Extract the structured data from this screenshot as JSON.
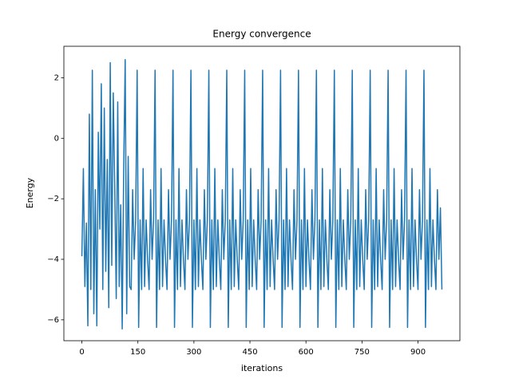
{
  "chart_data": {
    "type": "line",
    "title": "Energy convergence",
    "xlabel": "iterations",
    "ylabel": "Energy",
    "xlim": [
      -48.2,
      1012.2
    ],
    "ylim": [
      -6.69,
      3.04
    ],
    "xticks": [
      0,
      150,
      300,
      450,
      600,
      750,
      900
    ],
    "yticks": [
      {
        "value": -6,
        "label": "−6"
      },
      {
        "value": -4,
        "label": "−4"
      },
      {
        "value": -2,
        "label": "−2"
      },
      0,
      2
    ],
    "x": [
      0,
      4,
      8,
      12,
      16,
      20,
      24,
      28,
      32,
      36,
      40,
      44,
      48,
      52,
      56,
      60,
      64,
      68,
      72,
      76,
      80,
      84,
      88,
      92,
      96,
      100,
      104,
      108,
      112,
      116,
      120,
      124,
      128,
      132,
      136,
      140,
      144,
      148,
      152,
      156,
      160,
      164,
      168,
      172,
      176,
      180,
      184,
      188,
      192,
      196,
      200,
      204,
      208,
      212,
      216,
      220,
      224,
      228,
      232,
      236,
      240,
      244,
      248,
      252,
      256,
      260,
      264,
      268,
      272,
      276,
      280,
      284,
      288,
      292,
      296,
      300,
      304,
      308,
      312,
      316,
      320,
      324,
      328,
      332,
      336,
      340,
      344,
      348,
      352,
      356,
      360,
      364,
      368,
      372,
      376,
      380,
      384,
      388,
      392,
      396,
      400,
      404,
      408,
      412,
      416,
      420,
      424,
      428,
      432,
      436,
      440,
      444,
      448,
      452,
      456,
      460,
      464,
      468,
      472,
      476,
      480,
      484,
      488,
      492,
      496,
      500,
      504,
      508,
      512,
      516,
      520,
      524,
      528,
      532,
      536,
      540,
      544,
      548,
      552,
      556,
      560,
      564,
      568,
      572,
      576,
      580,
      584,
      588,
      592,
      596,
      600,
      604,
      608,
      612,
      616,
      620,
      624,
      628,
      632,
      636,
      640,
      644,
      648,
      652,
      656,
      660,
      664,
      668,
      672,
      676,
      680,
      684,
      688,
      692,
      696,
      700,
      704,
      708,
      712,
      716,
      720,
      724,
      728,
      732,
      736,
      740,
      744,
      748,
      752,
      756,
      760,
      764,
      768,
      772,
      776,
      780,
      784,
      788,
      792,
      796,
      800,
      804,
      808,
      812,
      816,
      820,
      824,
      828,
      832,
      836,
      840,
      844,
      848,
      852,
      856,
      860,
      864,
      868,
      872,
      876,
      880,
      884,
      888,
      892,
      896,
      900,
      904,
      908,
      912,
      916,
      920,
      924,
      928,
      932,
      936,
      940,
      944,
      948,
      952,
      956,
      960,
      964
    ],
    "series": [
      {
        "name": "Energy",
        "color": "#1f77b4",
        "values": [
          -3.9,
          -1.0,
          -4.9,
          -2.8,
          -6.2,
          0.8,
          -5.0,
          2.25,
          -5.8,
          -1.7,
          -6.2,
          0.2,
          -3.0,
          1.8,
          -5.0,
          1.0,
          -4.4,
          -0.7,
          -5.6,
          2.5,
          -4.2,
          1.5,
          -1.6,
          -5.3,
          1.2,
          -4.9,
          -2.2,
          -6.3,
          -1.0,
          2.6,
          -5.8,
          -0.6,
          -4.9,
          -5.0,
          -1.7,
          -4.0,
          -2.7,
          2.25,
          -6.25,
          -2.7,
          -5.0,
          -1.0,
          -4.9,
          -2.7,
          -4.0,
          -5.0,
          -1.7,
          -4.0,
          -2.7,
          2.25,
          -6.25,
          -2.7,
          -5.0,
          -1.0,
          -4.9,
          -2.7,
          -4.0,
          -5.0,
          -1.7,
          -4.0,
          -2.7,
          2.25,
          -6.25,
          -2.7,
          -5.0,
          -1.0,
          -4.9,
          -2.7,
          -4.0,
          -5.0,
          -1.7,
          -4.0,
          -2.7,
          2.25,
          -6.25,
          -2.7,
          -5.0,
          -1.0,
          -4.9,
          -2.7,
          -4.0,
          -5.0,
          -1.7,
          -4.0,
          -2.7,
          2.25,
          -6.25,
          -2.7,
          -5.0,
          -1.0,
          -4.9,
          -2.7,
          -4.0,
          -5.0,
          -1.7,
          -4.0,
          -2.7,
          2.25,
          -6.25,
          -2.7,
          -5.0,
          -1.0,
          -4.9,
          -2.7,
          -4.0,
          -5.0,
          -1.7,
          -4.0,
          -2.7,
          2.25,
          -6.25,
          -2.7,
          -5.0,
          -1.0,
          -4.9,
          -2.7,
          -4.0,
          -5.0,
          -1.7,
          -4.0,
          -2.7,
          2.25,
          -6.25,
          -2.7,
          -5.0,
          -1.0,
          -4.9,
          -2.7,
          -4.0,
          -5.0,
          -1.7,
          -4.0,
          -2.7,
          2.25,
          -6.25,
          -2.7,
          -5.0,
          -1.0,
          -4.9,
          -2.7,
          -4.0,
          -5.0,
          -1.7,
          -4.0,
          -2.7,
          2.25,
          -6.25,
          -2.7,
          -5.0,
          -1.0,
          -4.9,
          -2.7,
          -4.0,
          -5.0,
          -1.7,
          -4.0,
          -2.7,
          2.25,
          -6.25,
          -2.7,
          -5.0,
          -1.0,
          -4.9,
          -2.7,
          -4.0,
          -5.0,
          -1.7,
          -4.0,
          -2.7,
          2.25,
          -6.25,
          -2.7,
          -5.0,
          -1.0,
          -4.9,
          -2.7,
          -4.0,
          -5.0,
          -1.7,
          -4.0,
          -2.7,
          2.25,
          -6.25,
          -2.7,
          -5.0,
          -1.0,
          -4.9,
          -2.7,
          -4.0,
          -5.0,
          -1.7,
          -4.0,
          -2.7,
          2.25,
          -6.25,
          -2.7,
          -5.0,
          -1.0,
          -4.9,
          -2.7,
          -4.0,
          -5.0,
          -1.7,
          -4.0,
          -2.7,
          2.25,
          -6.25,
          -2.7,
          -5.0,
          -1.0,
          -4.9,
          -2.7,
          -4.0,
          -5.0,
          -1.7,
          -4.0,
          -2.7,
          2.25,
          -6.25,
          -2.7,
          -5.0,
          -1.0,
          -4.9,
          -2.7,
          -4.0,
          -5.0,
          -1.7,
          -4.0,
          -2.7,
          2.25,
          -6.25,
          -2.7,
          -5.0,
          -1.0,
          -4.9,
          -2.7,
          -4.0,
          -5.0,
          -1.7,
          -4.0,
          -2.3,
          -5.0
        ]
      }
    ]
  }
}
